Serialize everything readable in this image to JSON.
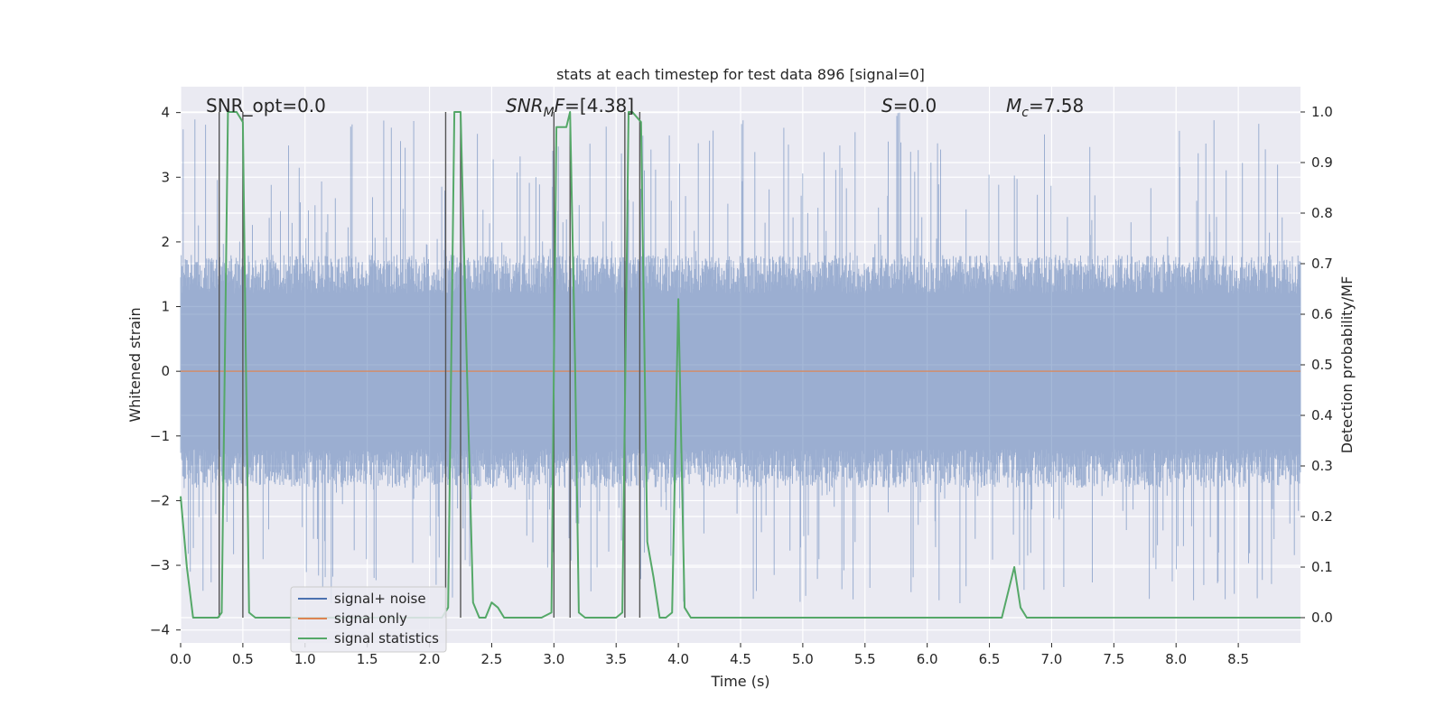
{
  "chart_data": {
    "type": "line",
    "title": "stats at each timestep for test data 896 [signal=0]",
    "xlabel": "Time (s)",
    "ylabel": "Whitened strain",
    "y2label": "Detection probability/MF",
    "xlim": [
      0.0,
      9.0
    ],
    "ylim": [
      -4.2,
      4.4
    ],
    "y2lim": [
      -0.05,
      1.05
    ],
    "xticks": [
      "0.0",
      "0.5",
      "1.0",
      "1.5",
      "2.0",
      "2.5",
      "3.0",
      "3.5",
      "4.0",
      "4.5",
      "5.0",
      "5.5",
      "6.0",
      "6.5",
      "7.0",
      "7.5",
      "8.0",
      "8.5"
    ],
    "yticks": [
      "−4",
      "−3",
      "−2",
      "−1",
      "0",
      "1",
      "2",
      "3",
      "4"
    ],
    "y2ticks": [
      "0.0",
      "0.1",
      "0.2",
      "0.3",
      "0.4",
      "0.5",
      "0.6",
      "0.7",
      "0.8",
      "0.9",
      "1.0"
    ],
    "grid": true,
    "legend_position": "lower-left",
    "annotations": {
      "snr_opt": "SNR_opt=0.0",
      "snr_mf_sym": "SNR",
      "snr_mf_sub": "M",
      "snr_mf_rest": "F=[4.38]",
      "s_sym": "S",
      "s_rest": "=0.0",
      "mc_sym": "M",
      "mc_sub": "c",
      "mc_rest": "=7.58"
    },
    "legend": [
      {
        "label": "signal+ noise",
        "color": "#4c72b0"
      },
      {
        "label": "signal only",
        "color": "#dd8452"
      },
      {
        "label": "signal statistics",
        "color": "#55a868"
      }
    ],
    "series": [
      {
        "name": "signal+ noise",
        "axis": "left",
        "description": "dense whitened strain noise, approx between -3.6 and 4.0",
        "envelope": {
          "core_low": -1.2,
          "core_high": 1.2,
          "peak_low": -3.6,
          "peak_high": 4.0
        }
      },
      {
        "name": "signal only",
        "axis": "left",
        "x": [
          0.0,
          9.0
        ],
        "y": [
          0.0,
          0.0
        ]
      },
      {
        "name": "signal statistics",
        "axis": "right",
        "x": [
          0.0,
          0.05,
          0.1,
          0.2,
          0.25,
          0.3,
          0.33,
          0.38,
          0.45,
          0.5,
          0.55,
          0.6,
          0.7,
          0.8,
          1.0,
          1.5,
          2.0,
          2.1,
          2.15,
          2.2,
          2.25,
          2.3,
          2.35,
          2.4,
          2.45,
          2.5,
          2.55,
          2.6,
          2.7,
          2.8,
          2.9,
          2.98,
          3.0,
          3.02,
          3.05,
          3.1,
          3.13,
          3.17,
          3.2,
          3.25,
          3.3,
          3.4,
          3.5,
          3.55,
          3.6,
          3.63,
          3.7,
          3.75,
          3.8,
          3.85,
          3.9,
          3.95,
          4.0,
          4.05,
          4.1,
          4.2,
          4.4,
          4.5,
          4.6,
          5.0,
          5.5,
          5.6,
          5.7,
          6.0,
          6.5,
          6.6,
          6.7,
          6.75,
          6.8,
          7.0,
          7.5,
          8.0,
          8.5,
          9.0
        ],
        "y": [
          0.24,
          0.1,
          0.0,
          0.0,
          0.0,
          0.0,
          0.01,
          1.0,
          1.0,
          0.98,
          0.01,
          0.0,
          0.0,
          0.0,
          0.0,
          0.0,
          0.0,
          0.0,
          0.02,
          1.0,
          1.0,
          0.5,
          0.03,
          0.0,
          0.0,
          0.03,
          0.02,
          0.0,
          0.0,
          0.0,
          0.0,
          0.01,
          0.5,
          0.97,
          0.97,
          0.97,
          1.0,
          0.5,
          0.01,
          0.0,
          0.0,
          0.0,
          0.0,
          0.01,
          1.0,
          1.0,
          0.98,
          0.15,
          0.08,
          0.0,
          0.0,
          0.01,
          0.63,
          0.02,
          0.0,
          0.0,
          0.0,
          0.0,
          0.0,
          0.0,
          0.0,
          0.0,
          0.0,
          0.0,
          0.0,
          0.0,
          0.1,
          0.02,
          0.0,
          0.0,
          0.0,
          0.0,
          0.0,
          0.0
        ]
      }
    ],
    "vertical_markers": [
      0.31,
      0.5,
      2.13,
      2.25,
      3.0,
      3.13,
      3.57,
      3.69
    ]
  }
}
